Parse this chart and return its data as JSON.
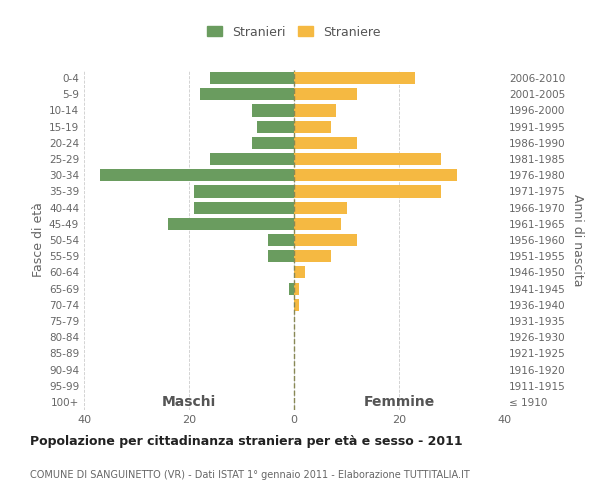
{
  "age_groups": [
    "0-4",
    "5-9",
    "10-14",
    "15-19",
    "20-24",
    "25-29",
    "30-34",
    "35-39",
    "40-44",
    "45-49",
    "50-54",
    "55-59",
    "60-64",
    "65-69",
    "70-74",
    "75-79",
    "80-84",
    "85-89",
    "90-94",
    "95-99",
    "100+"
  ],
  "birth_years": [
    "2006-2010",
    "2001-2005",
    "1996-2000",
    "1991-1995",
    "1986-1990",
    "1981-1985",
    "1976-1980",
    "1971-1975",
    "1966-1970",
    "1961-1965",
    "1956-1960",
    "1951-1955",
    "1946-1950",
    "1941-1945",
    "1936-1940",
    "1931-1935",
    "1926-1930",
    "1921-1925",
    "1916-1920",
    "1911-1915",
    "≤ 1910"
  ],
  "maschi": [
    16,
    18,
    8,
    7,
    8,
    16,
    37,
    19,
    19,
    24,
    5,
    5,
    0,
    1,
    0,
    0,
    0,
    0,
    0,
    0,
    0
  ],
  "femmine": [
    23,
    12,
    8,
    7,
    12,
    28,
    31,
    28,
    10,
    9,
    12,
    7,
    2,
    1,
    1,
    0,
    0,
    0,
    0,
    0,
    0
  ],
  "male_color": "#6a9c5f",
  "female_color": "#f5b942",
  "grid_color": "#cccccc",
  "dashed_line_color": "#888855",
  "background_color": "#ffffff",
  "title": "Popolazione per cittadinanza straniera per età e sesso - 2011",
  "subtitle": "COMUNE DI SANGUINETTO (VR) - Dati ISTAT 1° gennaio 2011 - Elaborazione TUTTITALIA.IT",
  "ylabel_left": "Fasce di età",
  "ylabel_right": "Anni di nascita",
  "legend_male": "Stranieri",
  "legend_female": "Straniere",
  "xlim": 40,
  "header_maschi": "Maschi",
  "header_femmine": "Femmine",
  "title_fontsize": 9,
  "subtitle_fontsize": 7,
  "bar_height": 0.75
}
